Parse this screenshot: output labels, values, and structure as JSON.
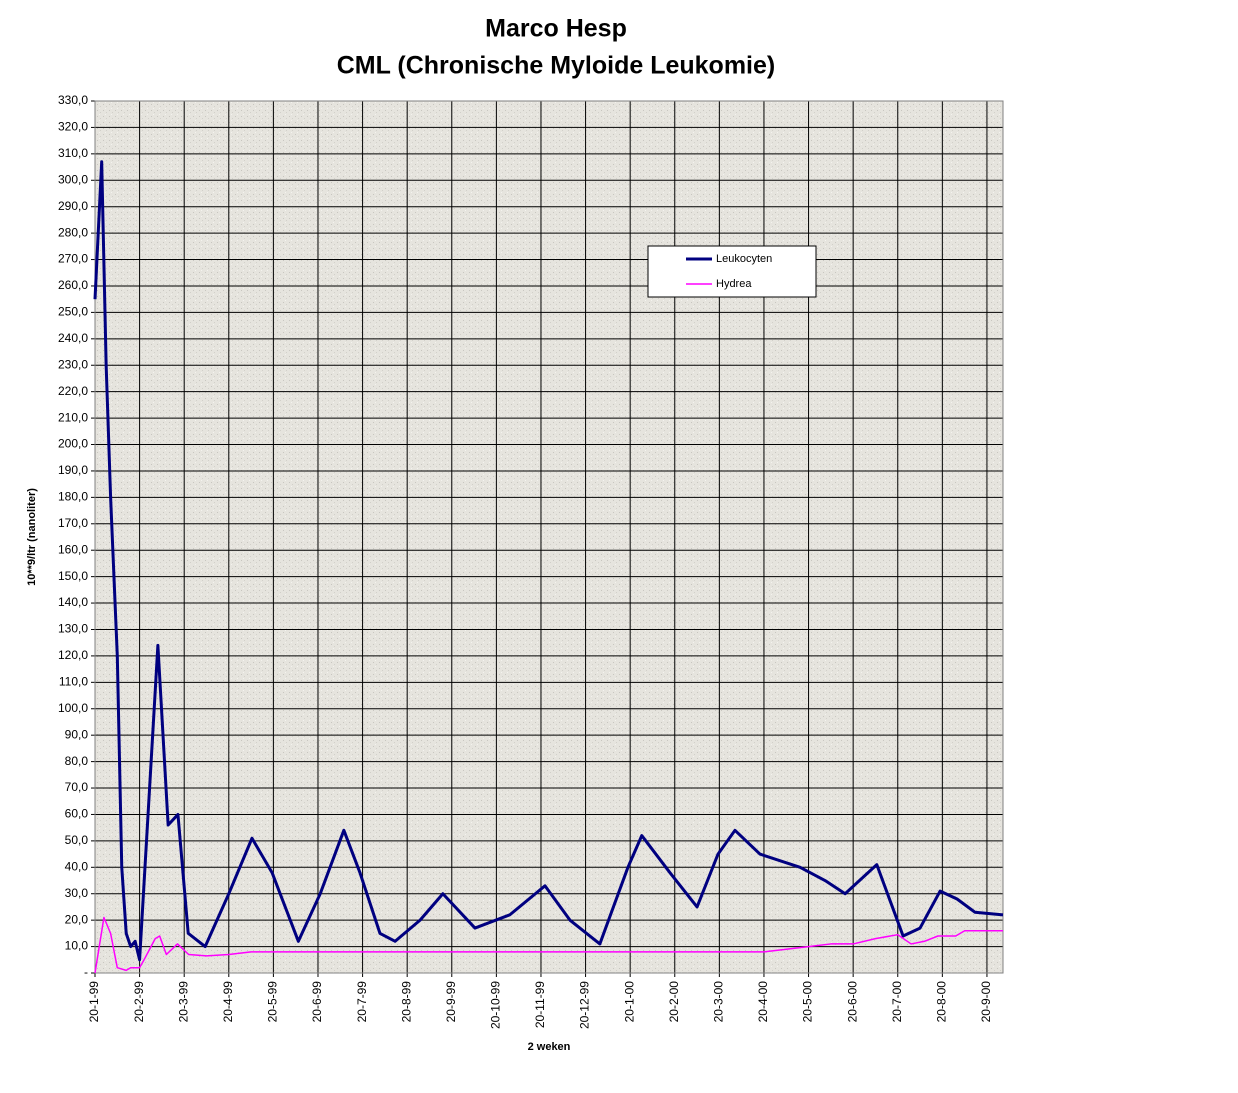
{
  "chart_data": {
    "type": "line",
    "title": "Marco Hesp",
    "subtitle": "CML (Chronische Myloide Leukomie)",
    "x_label": "2 weken",
    "y_label": "10**9/ltr (nanoliter)",
    "grid": true,
    "legend": "top-right",
    "xlim": [
      0,
      20.36
    ],
    "ylim": [
      0,
      330
    ],
    "xticks": [
      {
        "value": 0,
        "label": "20-1-99"
      },
      {
        "value": 1,
        "label": "20-2-99"
      },
      {
        "value": 2,
        "label": "20-3-99"
      },
      {
        "value": 3,
        "label": "20-4-99"
      },
      {
        "value": 4,
        "label": "20-5-99"
      },
      {
        "value": 5,
        "label": "20-6-99"
      },
      {
        "value": 6,
        "label": "20-7-99"
      },
      {
        "value": 7,
        "label": "20-8-99"
      },
      {
        "value": 8,
        "label": "20-9-99"
      },
      {
        "value": 9,
        "label": "20-10-99"
      },
      {
        "value": 10,
        "label": "20-11-99"
      },
      {
        "value": 11,
        "label": "20-12-99"
      },
      {
        "value": 12,
        "label": "20-1-00"
      },
      {
        "value": 13,
        "label": "20-2-00"
      },
      {
        "value": 14,
        "label": "20-3-00"
      },
      {
        "value": 15,
        "label": "20-4-00"
      },
      {
        "value": 16,
        "label": "20-5-00"
      },
      {
        "value": 17,
        "label": "20-6-00"
      },
      {
        "value": 18,
        "label": "20-7-00"
      },
      {
        "value": 19,
        "label": "20-8-00"
      },
      {
        "value": 20,
        "label": "20-9-00"
      }
    ],
    "yticks": [
      {
        "value": 0,
        "label": "-"
      },
      {
        "value": 10,
        "label": "10,0"
      },
      {
        "value": 20,
        "label": "20,0"
      },
      {
        "value": 30,
        "label": "30,0"
      },
      {
        "value": 40,
        "label": "40,0"
      },
      {
        "value": 50,
        "label": "50,0"
      },
      {
        "value": 60,
        "label": "60,0"
      },
      {
        "value": 70,
        "label": "70,0"
      },
      {
        "value": 80,
        "label": "80,0"
      },
      {
        "value": 90,
        "label": "90,0"
      },
      {
        "value": 100,
        "label": "100,0"
      },
      {
        "value": 110,
        "label": "110,0"
      },
      {
        "value": 120,
        "label": "120,0"
      },
      {
        "value": 130,
        "label": "130,0"
      },
      {
        "value": 140,
        "label": "140,0"
      },
      {
        "value": 150,
        "label": "150,0"
      },
      {
        "value": 160,
        "label": "160,0"
      },
      {
        "value": 170,
        "label": "170,0"
      },
      {
        "value": 180,
        "label": "180,0"
      },
      {
        "value": 190,
        "label": "190,0"
      },
      {
        "value": 200,
        "label": "200,0"
      },
      {
        "value": 210,
        "label": "210,0"
      },
      {
        "value": 220,
        "label": "220,0"
      },
      {
        "value": 230,
        "label": "230,0"
      },
      {
        "value": 240,
        "label": "240,0"
      },
      {
        "value": 250,
        "label": "250,0"
      },
      {
        "value": 260,
        "label": "260,0"
      },
      {
        "value": 270,
        "label": "270,0"
      },
      {
        "value": 280,
        "label": "280,0"
      },
      {
        "value": 290,
        "label": "290,0"
      },
      {
        "value": 300,
        "label": "300,0"
      },
      {
        "value": 310,
        "label": "310,0"
      },
      {
        "value": 320,
        "label": "320,0"
      },
      {
        "value": 330,
        "label": "330,0"
      }
    ],
    "series": [
      {
        "name": "Leukocyten",
        "color": "#000080",
        "x": [
          0,
          0.15,
          0.25,
          0.35,
          0.5,
          0.6,
          0.7,
          0.8,
          0.9,
          1.0,
          1.41,
          1.64,
          1.86,
          2.09,
          2.47,
          3.0,
          3.52,
          3.97,
          4.56,
          5.05,
          5.58,
          5.94,
          6.39,
          6.73,
          7.29,
          7.8,
          8.52,
          9.3,
          10.09,
          10.65,
          11.32,
          11.95,
          12.26,
          12.89,
          13.5,
          13.97,
          14.35,
          14.91,
          15.81,
          16.37,
          16.82,
          17.53,
          18.12,
          18.5,
          18.95,
          19.33,
          19.73,
          20.36
        ],
        "values": [
          255,
          307,
          230,
          180,
          120,
          40,
          15,
          10,
          12,
          5,
          124,
          56,
          60,
          15,
          10,
          30,
          51,
          38,
          12,
          30,
          54,
          38,
          15,
          12,
          20,
          30,
          17,
          22,
          33,
          20,
          11,
          40,
          52,
          38,
          25,
          45,
          54,
          45,
          40,
          35,
          30,
          41,
          14,
          17,
          31,
          28,
          23,
          22
        ]
      },
      {
        "name": "Hydrea",
        "color": "#ff00ff",
        "x": [
          0,
          0.2,
          0.35,
          0.5,
          0.7,
          0.8,
          1.0,
          1.1,
          1.35,
          1.45,
          1.6,
          1.85,
          2.1,
          2.5,
          3,
          3.5,
          4,
          6,
          15,
          15.5,
          16,
          16.5,
          17,
          17.5,
          18,
          18.3,
          18.6,
          18.9,
          19.3,
          19.5,
          20.36
        ],
        "values": [
          0,
          21,
          15,
          2,
          1,
          2,
          2,
          5,
          13,
          14,
          7,
          11,
          7,
          6.5,
          7,
          8,
          8,
          8,
          8,
          9,
          10,
          11,
          11,
          13,
          14.5,
          11,
          12,
          14,
          14,
          16,
          16
        ]
      }
    ]
  }
}
